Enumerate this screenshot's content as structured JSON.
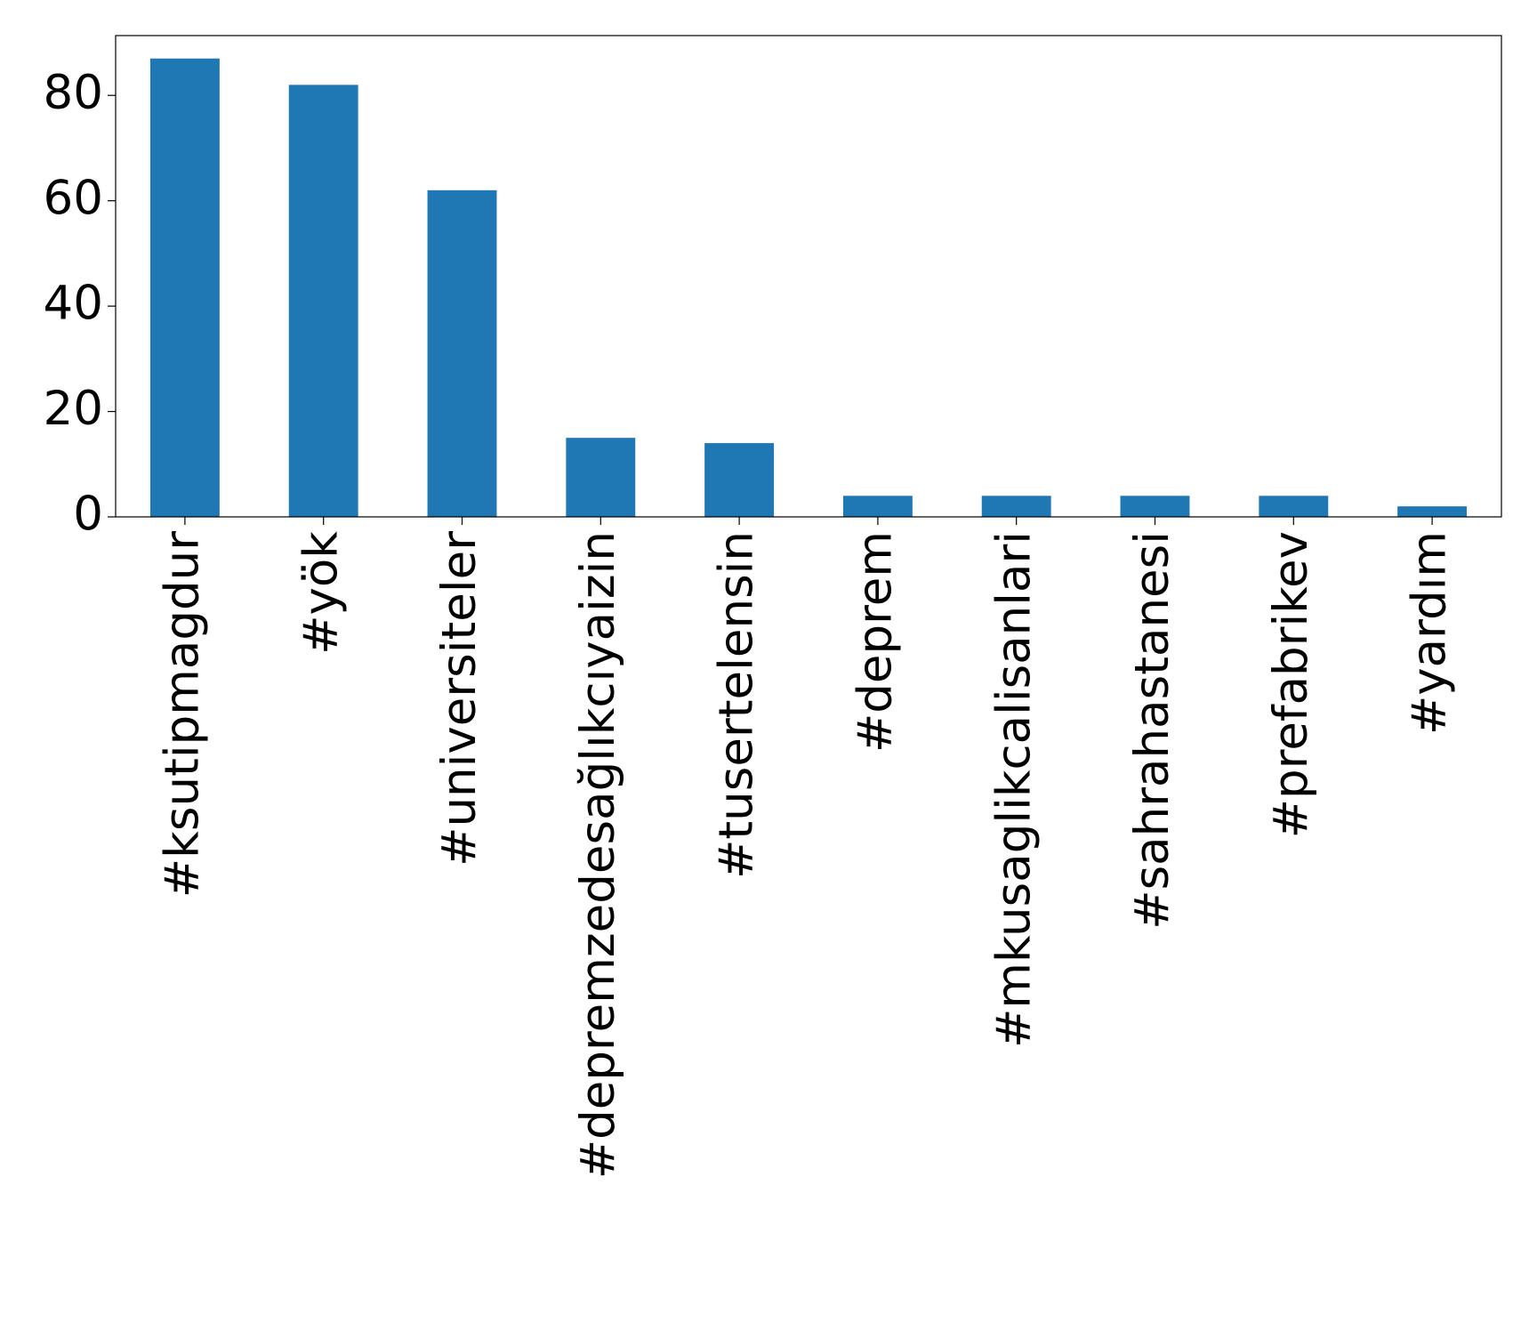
{
  "chart_data": {
    "type": "bar",
    "categories": [
      "#ksutipmagdur",
      "#yök",
      "#universiteler",
      "#depremzedesağlıkcıyaizin",
      "#tusertelensin",
      "#deprem",
      "#mkusaglikcalisanlari",
      "#sahrahastanesi",
      "#prefabrikev",
      "#yardım"
    ],
    "values": [
      87,
      82,
      62,
      15,
      14,
      4,
      4,
      4,
      4,
      2
    ],
    "color": "#1f77b4",
    "ylim": [
      0,
      91.35
    ],
    "yticks": [
      0,
      20,
      40,
      60,
      80
    ],
    "grid": false
  }
}
